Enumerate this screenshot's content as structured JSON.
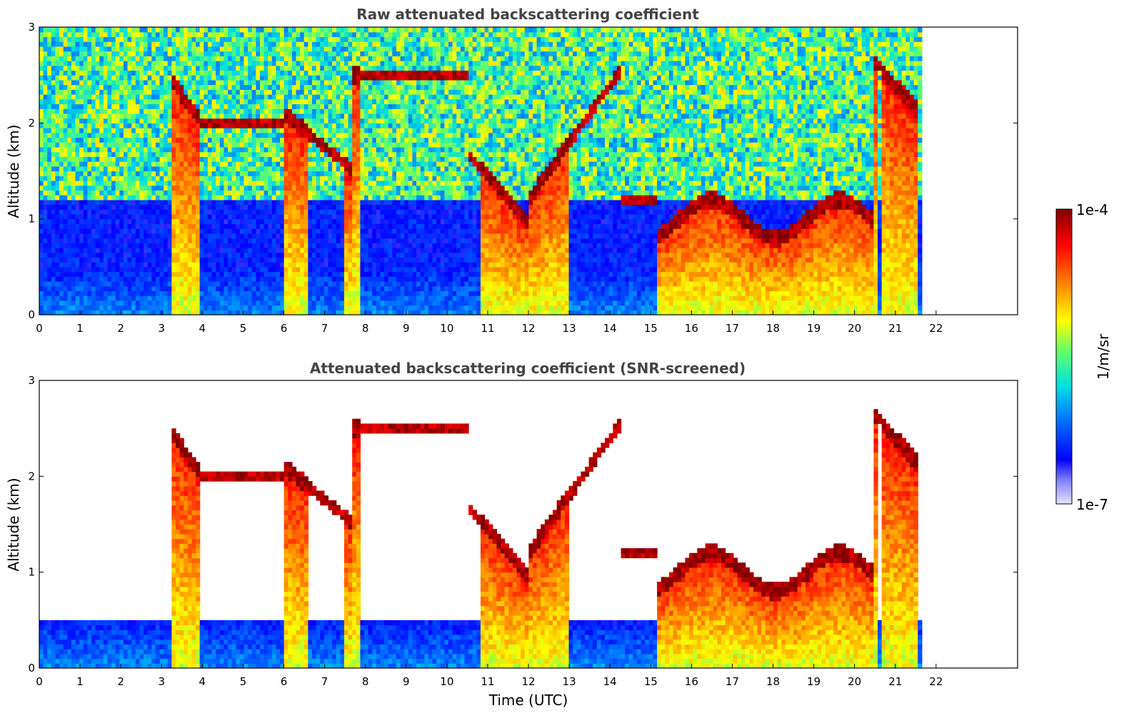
{
  "chart_data": [
    {
      "type": "heatmap",
      "title": "Raw attenuated backscattering coefficient",
      "xlabel": "",
      "ylabel": "Altitude (km)",
      "xlim": [
        0,
        24
      ],
      "ylim": [
        0,
        3
      ],
      "xticks": [
        0,
        1,
        2,
        3,
        4,
        5,
        6,
        7,
        8,
        9,
        10,
        11,
        12,
        13,
        14,
        15,
        16,
        17,
        18,
        19,
        20,
        21,
        22
      ],
      "yticks": [
        0,
        1,
        2,
        3
      ],
      "data_time_range": [
        0,
        21.65
      ],
      "screened": false
    },
    {
      "type": "heatmap",
      "title": "Attenuated backscattering coefficient (SNR-screened)",
      "xlabel": "Time (UTC)",
      "ylabel": "Altitude (km)",
      "xlim": [
        0,
        24
      ],
      "ylim": [
        0,
        3
      ],
      "xticks": [
        0,
        1,
        2,
        3,
        4,
        5,
        6,
        7,
        8,
        9,
        10,
        11,
        12,
        13,
        14,
        15,
        16,
        17,
        18,
        19,
        20,
        21,
        22
      ],
      "yticks": [
        0,
        1,
        2,
        3
      ],
      "data_time_range": [
        0,
        21.65
      ],
      "screened": true
    }
  ],
  "colorbar": {
    "label": "1/m/sr",
    "max_label": "1e-4",
    "min_label": "1e-7",
    "scale": "log",
    "colormap": "jet"
  }
}
